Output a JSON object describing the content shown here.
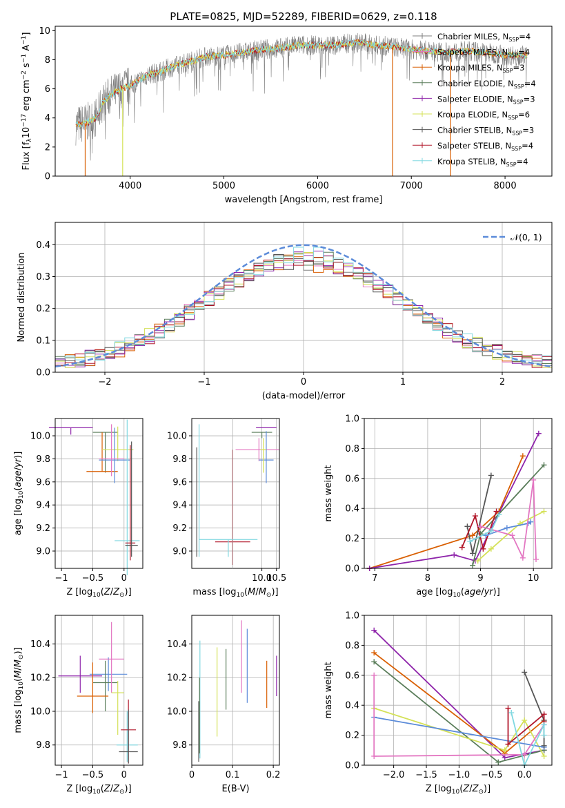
{
  "title": "PLATE=0825, MJD=52289, FIBERID=0629, z=0.118",
  "model_colors": [
    "#7f7f7f",
    "#e377c2",
    "#d95f02",
    "#5a7d5a",
    "#8e24aa",
    "#d4e157",
    "#555555",
    "#b2182b",
    "#80d8e0"
  ],
  "legend": [
    {
      "label": "Chabrier MILES, N",
      "sub": "SSP",
      "suffix": "=4",
      "color": "#7f7f7f"
    },
    {
      "label": "Salpeter MILES, N",
      "sub": "SSP",
      "suffix": "=4",
      "color": "#e377c2"
    },
    {
      "label": "Kroupa MILES, N",
      "sub": "SSP",
      "suffix": "=3",
      "color": "#d95f02"
    },
    {
      "label": "Chabrier ELODIE, N",
      "sub": "SSP",
      "suffix": "=4",
      "color": "#5a7d5a"
    },
    {
      "label": "Salpeter ELODIE, N",
      "sub": "SSP",
      "suffix": "=3",
      "color": "#8e24aa"
    },
    {
      "label": "Kroupa ELODIE, N",
      "sub": "SSP",
      "suffix": "=6",
      "color": "#d4e157"
    },
    {
      "label": "Chabrier STELIB, N",
      "sub": "SSP",
      "suffix": "=3",
      "color": "#555555"
    },
    {
      "label": "Salpeter STELIB, N",
      "sub": "SSP",
      "suffix": "=4",
      "color": "#b2182b"
    },
    {
      "label": "Kroupa STELIB, N",
      "sub": "SSP",
      "suffix": "=4",
      "color": "#80d8e0"
    }
  ],
  "chart_data": [
    {
      "type": "line",
      "panel": "spectrum",
      "xlabel": "wavelength [Angstrom, rest frame]",
      "ylabel": "Flux [f_λ10^-17 erg cm^-2 s^-1 A^-1]",
      "xlim": [
        3200,
        8500
      ],
      "ylim": [
        0,
        10.3
      ],
      "xticks": [
        4000,
        5000,
        6000,
        7000,
        8000
      ],
      "yticks": [
        0,
        2,
        4,
        6,
        8,
        10
      ],
      "continuum_points": [
        [
          3420,
          3.5
        ],
        [
          3550,
          3.7
        ],
        [
          3650,
          4.1
        ],
        [
          3700,
          5.0
        ],
        [
          3800,
          5.6
        ],
        [
          3900,
          6.0
        ],
        [
          4000,
          6.2
        ],
        [
          4100,
          6.6
        ],
        [
          4200,
          7.0
        ],
        [
          4300,
          7.1
        ],
        [
          4400,
          7.4
        ],
        [
          4600,
          7.8
        ],
        [
          4800,
          8.2
        ],
        [
          5000,
          8.3
        ],
        [
          5200,
          8.5
        ],
        [
          5400,
          8.7
        ],
        [
          5600,
          8.8
        ],
        [
          5800,
          9.0
        ],
        [
          6000,
          9.0
        ],
        [
          6200,
          9.0
        ],
        [
          6400,
          9.2
        ],
        [
          6600,
          9.0
        ],
        [
          6800,
          8.9
        ],
        [
          7000,
          8.7
        ],
        [
          7200,
          8.6
        ],
        [
          7400,
          8.5
        ],
        [
          7600,
          8.6
        ],
        [
          7800,
          8.5
        ],
        [
          8000,
          8.3
        ],
        [
          8200,
          8.3
        ]
      ],
      "spike_lines": [
        [
          3520,
          "#d95f02"
        ],
        [
          3920,
          "#d4e157"
        ],
        [
          6800,
          "#d95f02"
        ],
        [
          7420,
          "#d95f02"
        ]
      ]
    },
    {
      "type": "line",
      "panel": "residual_histogram",
      "xlabel": "(data-model)/error",
      "ylabel": "Normed distribution",
      "xlim": [
        -2.5,
        2.5
      ],
      "ylim": [
        0,
        0.47
      ],
      "xticks": [
        -2,
        -1,
        0,
        1,
        2
      ],
      "yticks": [
        0.0,
        0.1,
        0.2,
        0.3,
        0.4
      ],
      "reference_label": "𝒩(0, 1)",
      "reference_color": "#5b8bd9"
    },
    {
      "type": "scatter",
      "panel": "age_vs_Z",
      "xlabel": "Z [log10(Z/Z⊙)]",
      "ylabel": "age [log10(age/yr)]",
      "xlim": [
        -1.1,
        0.3
      ],
      "ylim": [
        8.85,
        10.15
      ],
      "xticks": [
        -1.0,
        -0.5,
        0.0
      ],
      "yticks": [
        9.0,
        9.2,
        9.4,
        9.6,
        9.8,
        10.0
      ],
      "points": [
        {
          "x": -0.85,
          "xerr": 0.35,
          "y": 10.07,
          "yerr_lo": 0.06,
          "yerr_hi": 0.0,
          "color": "#8e24aa"
        },
        {
          "x": -0.3,
          "xerr": 0.2,
          "y": 10.03,
          "yerr_lo": 0.35,
          "yerr_hi": 0.0,
          "color": "#5a7d5a"
        },
        {
          "x": -0.35,
          "xerr": 0.25,
          "y": 9.69,
          "yerr_lo": 0.0,
          "yerr_hi": 0.34,
          "color": "#d95f02"
        },
        {
          "x": -0.1,
          "xerr": 0.25,
          "y": 9.88,
          "yerr_lo": 0.1,
          "yerr_hi": 0.2,
          "color": "#d4e157"
        },
        {
          "x": -0.15,
          "xerr": 0.25,
          "y": 9.79,
          "yerr_lo": 0.2,
          "yerr_hi": 0.28,
          "color": "#5b8bd9"
        },
        {
          "x": -0.2,
          "xerr": 0.2,
          "y": 9.8,
          "yerr_lo": 0.15,
          "yerr_hi": 0.3,
          "color": "#e377c2"
        },
        {
          "x": 0.05,
          "xerr": 0.2,
          "y": 9.09,
          "yerr_lo": 0.3,
          "yerr_hi": 1.05,
          "color": "#80d8e0"
        },
        {
          "x": 0.1,
          "xerr": 0.08,
          "y": 9.07,
          "yerr_lo": 0.15,
          "yerr_hi": 0.85,
          "color": "#b2182b"
        },
        {
          "x": 0.12,
          "xerr": 0.1,
          "y": 9.05,
          "yerr_lo": 0.1,
          "yerr_hi": 0.9,
          "color": "#555555"
        }
      ]
    },
    {
      "type": "scatter",
      "panel": "age_vs_mass",
      "xlabel": "mass [log10(M/M⊙)]",
      "xlim": [
        7.6,
        10.6
      ],
      "ylim": [
        8.85,
        10.15
      ],
      "xticks": [
        8,
        9,
        10,
        10.5
      ],
      "xtick_labels": [
        "",
        "10.0",
        "10.5"
      ],
      "xtick_values": [
        10.0,
        10.5
      ],
      "yticks": [
        9.0,
        9.2,
        9.4,
        9.6,
        9.8,
        10.0
      ],
      "points": [
        {
          "x": 7.77,
          "xerr": 0.0,
          "y": 9.05,
          "yerr_lo": 0.1,
          "yerr_hi": 0.85,
          "color": "#555555"
        },
        {
          "x": 7.85,
          "xerr": 0.0,
          "y": 9.1,
          "yerr_lo": 0.15,
          "yerr_hi": 1.0,
          "color": "#80d8e0"
        },
        {
          "x": 9.0,
          "xerr": 0.6,
          "y": 9.08,
          "yerr_lo": 0.2,
          "yerr_hi": 0.8,
          "color": "#b2182b"
        },
        {
          "x": 8.85,
          "xerr": 1.0,
          "y": 9.1,
          "yerr_lo": 0.15,
          "yerr_hi": 0.0,
          "color": "#80d8e0"
        },
        {
          "x": 10.0,
          "xerr": 0.35,
          "y": 10.03,
          "yerr_lo": 0.05,
          "yerr_hi": 0.0,
          "color": "#5a7d5a"
        },
        {
          "x": 10.15,
          "xerr": 0.35,
          "y": 10.07,
          "yerr_lo": 0.0,
          "yerr_hi": 0.0,
          "color": "#8e24aa"
        },
        {
          "x": 9.9,
          "xerr": 0.8,
          "y": 9.88,
          "yerr_lo": 0.1,
          "yerr_hi": 0.1,
          "color": "#e377c2"
        },
        {
          "x": 10.15,
          "xerr": 0.25,
          "y": 9.79,
          "yerr_lo": 0.2,
          "yerr_hi": 0.25,
          "color": "#5b8bd9"
        },
        {
          "x": 10.05,
          "xerr": 0.1,
          "y": 9.88,
          "yerr_lo": 0.2,
          "yerr_hi": 0.1,
          "color": "#d4e157"
        }
      ]
    },
    {
      "type": "line",
      "panel": "mass_weight_vs_age",
      "xlabel": "age [log10(age/yr)]",
      "ylabel": "mass weight",
      "xlim": [
        6.8,
        10.35
      ],
      "ylim": [
        0,
        1.0
      ],
      "xticks": [
        7,
        8,
        9,
        10
      ],
      "yticks": [
        0.0,
        0.2,
        0.4,
        0.6,
        0.8,
        1.0
      ],
      "series": [
        {
          "color": "#d95f02",
          "points": [
            [
              6.9,
              0.0
            ],
            [
              8.85,
              0.22
            ],
            [
              9.35,
              0.38
            ],
            [
              9.8,
              0.75
            ]
          ]
        },
        {
          "color": "#8e24aa",
          "points": [
            [
              6.9,
              0.0
            ],
            [
              8.5,
              0.09
            ],
            [
              8.9,
              0.05
            ],
            [
              10.1,
              0.9
            ]
          ]
        },
        {
          "color": "#5a7d5a",
          "points": [
            [
              8.85,
              0.02
            ],
            [
              9.0,
              0.23
            ],
            [
              10.2,
              0.69
            ]
          ]
        },
        {
          "color": "#d4e157",
          "points": [
            [
              8.95,
              0.05
            ],
            [
              9.2,
              0.13
            ],
            [
              9.75,
              0.3
            ],
            [
              10.2,
              0.38
            ]
          ]
        },
        {
          "color": "#555555",
          "points": [
            [
              8.75,
              0.28
            ],
            [
              8.85,
              0.1
            ],
            [
              9.2,
              0.62
            ]
          ]
        },
        {
          "color": "#b2182b",
          "points": [
            [
              8.65,
              0.14
            ],
            [
              8.9,
              0.35
            ],
            [
              9.05,
              0.13
            ],
            [
              9.3,
              0.38
            ]
          ]
        },
        {
          "color": "#5b8bd9",
          "points": [
            [
              9.1,
              0.22
            ],
            [
              9.5,
              0.27
            ],
            [
              9.9,
              0.3
            ],
            [
              9.95,
              0.31
            ]
          ]
        },
        {
          "color": "#e377c2",
          "points": [
            [
              9.0,
              0.28
            ],
            [
              9.6,
              0.22
            ],
            [
              9.8,
              0.07
            ],
            [
              10.0,
              0.59
            ],
            [
              10.05,
              0.06
            ]
          ]
        },
        {
          "color": "#80d8e0",
          "points": [
            [
              8.8,
              0.18
            ],
            [
              9.2,
              0.25
            ],
            [
              9.35,
              0.36
            ]
          ]
        }
      ]
    },
    {
      "type": "scatter",
      "panel": "mass_vs_Z",
      "xlabel": "Z [log10(Z/Z⊙)]",
      "ylabel": "mass [log10(M/M⊙)]",
      "xlim": [
        -1.1,
        0.3
      ],
      "ylim": [
        9.68,
        10.57
      ],
      "xticks": [
        -1.0,
        -0.5,
        0.0
      ],
      "yticks": [
        9.8,
        10.0,
        10.2,
        10.4
      ],
      "points": [
        {
          "x": -0.7,
          "xerr": 0.35,
          "y": 10.21,
          "yerr_lo": 0.1,
          "yerr_hi": 0.12,
          "color": "#8e24aa"
        },
        {
          "x": -0.25,
          "xerr": 0.3,
          "y": 10.22,
          "yerr_lo": 0.1,
          "yerr_hi": 0.1,
          "color": "#5b8bd9"
        },
        {
          "x": -0.3,
          "xerr": 0.2,
          "y": 10.17,
          "yerr_lo": 0.17,
          "yerr_hi": 0.13,
          "color": "#5a7d5a"
        },
        {
          "x": -0.2,
          "xerr": 0.2,
          "y": 10.31,
          "yerr_lo": 0.2,
          "yerr_hi": 0.22,
          "color": "#e377c2"
        },
        {
          "x": -0.5,
          "xerr": 0.25,
          "y": 10.09,
          "yerr_lo": 0.1,
          "yerr_hi": 0.2,
          "color": "#d95f02"
        },
        {
          "x": -0.1,
          "xerr": 0.1,
          "y": 10.11,
          "yerr_lo": 0.25,
          "yerr_hi": 0.07,
          "color": "#d4e157"
        },
        {
          "x": 0.05,
          "xerr": 0.17,
          "y": 9.8,
          "yerr_lo": 0.1,
          "yerr_hi": 0.2,
          "color": "#80d8e0"
        },
        {
          "x": 0.07,
          "xerr": 0.12,
          "y": 9.89,
          "yerr_lo": 0.2,
          "yerr_hi": 0.18,
          "color": "#b2182b"
        },
        {
          "x": 0.07,
          "xerr": 0.15,
          "y": 9.76,
          "yerr_lo": 0.07,
          "yerr_hi": 0.25,
          "color": "#555555"
        }
      ]
    },
    {
      "type": "scatter",
      "panel": "mass_vs_EBV",
      "xlabel": "E(B-V)",
      "xlim": [
        0.0,
        0.215
      ],
      "ylim": [
        9.68,
        10.57
      ],
      "xticks": [
        0.0,
        0.1,
        0.2
      ],
      "yticks": [
        9.8,
        10.0,
        10.2,
        10.4
      ],
      "points": [
        {
          "x": 0.017,
          "y": 9.88,
          "yerr_lo": 0.18,
          "yerr_hi": 0.18,
          "color": "#555555"
        },
        {
          "x": 0.02,
          "y": 10.06,
          "yerr_lo": 0.34,
          "yerr_hi": 0.36,
          "color": "#80d8e0"
        },
        {
          "x": 0.019,
          "y": 9.95,
          "yerr_lo": 0.2,
          "yerr_hi": 0.25,
          "color": "#5a7d5a"
        },
        {
          "x": 0.062,
          "y": 10.12,
          "yerr_lo": 0.27,
          "yerr_hi": 0.26,
          "color": "#d4e157"
        },
        {
          "x": 0.084,
          "y": 10.17,
          "yerr_lo": 0.16,
          "yerr_hi": 0.2,
          "color": "#5a7d5a"
        },
        {
          "x": 0.122,
          "y": 10.31,
          "yerr_lo": 0.2,
          "yerr_hi": 0.23,
          "color": "#e377c2"
        },
        {
          "x": 0.136,
          "y": 10.27,
          "yerr_lo": 0.22,
          "yerr_hi": 0.22,
          "color": "#5b8bd9"
        },
        {
          "x": 0.184,
          "y": 10.11,
          "yerr_lo": 0.09,
          "yerr_hi": 0.19,
          "color": "#d95f02"
        },
        {
          "x": 0.208,
          "y": 10.21,
          "yerr_lo": 0.12,
          "yerr_hi": 0.12,
          "color": "#8e24aa"
        }
      ]
    },
    {
      "type": "line",
      "panel": "mass_weight_vs_Z",
      "xlabel": "Z [log10(Z/Z⊙)]",
      "ylabel": "mass weight",
      "xlim": [
        -2.45,
        0.42
      ],
      "ylim": [
        0,
        1.0
      ],
      "xticks": [
        -2.0,
        -1.5,
        -1.0,
        -0.5,
        0.0
      ],
      "yticks": [
        0.0,
        0.2,
        0.4,
        0.6,
        0.8,
        1.0
      ],
      "series": [
        {
          "color": "#8e24aa",
          "points": [
            [
              -2.3,
              0.9
            ],
            [
              -0.3,
              0.05
            ],
            [
              0.3,
              0.1
            ]
          ]
        },
        {
          "color": "#d95f02",
          "points": [
            [
              -2.3,
              0.75
            ],
            [
              -0.3,
              0.08
            ],
            [
              0.3,
              0.3
            ]
          ]
        },
        {
          "color": "#5a7d5a",
          "points": [
            [
              -2.3,
              0.69
            ],
            [
              -0.4,
              0.02
            ],
            [
              0.3,
              0.1
            ]
          ]
        },
        {
          "color": "#d4e157",
          "points": [
            [
              -2.3,
              0.38
            ],
            [
              -0.3,
              0.1
            ],
            [
              0.0,
              0.3
            ],
            [
              0.3,
              0.06
            ]
          ]
        },
        {
          "color": "#5b8bd9",
          "points": [
            [
              -2.3,
              0.32
            ],
            [
              0.3,
              0.12
            ]
          ]
        },
        {
          "color": "#e377c2",
          "points": [
            [
              -2.3,
              0.6
            ],
            [
              -2.3,
              0.06
            ],
            [
              0.0,
              0.07
            ],
            [
              0.3,
              0.27
            ]
          ]
        },
        {
          "color": "#555555",
          "points": [
            [
              0.0,
              0.62
            ],
            [
              0.3,
              0.3
            ],
            [
              0.3,
              0.13
            ]
          ]
        },
        {
          "color": "#b2182b",
          "points": [
            [
              -0.25,
              0.38
            ],
            [
              -0.25,
              0.14
            ],
            [
              0.3,
              0.34
            ],
            [
              0.3,
              0.29
            ]
          ]
        },
        {
          "color": "#80d8e0",
          "points": [
            [
              -0.2,
              0.35
            ],
            [
              0.0,
              0.0
            ],
            [
              0.3,
              0.27
            ],
            [
              0.3,
              0.2
            ]
          ]
        }
      ]
    }
  ]
}
